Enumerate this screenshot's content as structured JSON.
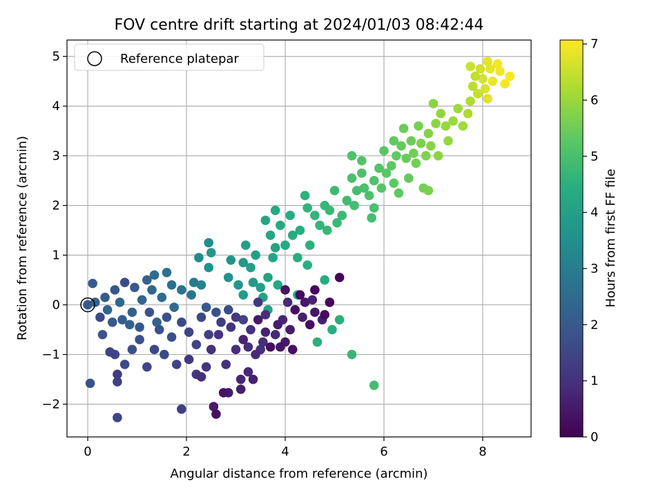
{
  "chart_data": {
    "type": "scatter",
    "title": "FOV centre drift starting at 2024/01/03 08:42:44",
    "xlabel": "Angular distance from reference (arcmin)",
    "ylabel": "Rotation from reference (arcmin)",
    "xlim": [
      -0.42,
      8.98
    ],
    "ylim": [
      -2.66,
      5.33
    ],
    "xticks": [
      0,
      2,
      4,
      6,
      8
    ],
    "yticks": [
      -2,
      -1,
      0,
      1,
      2,
      3,
      4,
      5
    ],
    "xtick_labels": [
      "0",
      "2",
      "4",
      "6",
      "8"
    ],
    "ytick_labels": [
      "−2",
      "−1",
      "0",
      "1",
      "2",
      "3",
      "4",
      "5"
    ],
    "grid": true,
    "legend": {
      "placement": "top-left",
      "label": "Reference platepar"
    },
    "reference_point": {
      "x": 0,
      "y": 0
    },
    "colorbar": {
      "label": "Hours from first FF file",
      "range": [
        0,
        7.07
      ],
      "ticks": [
        0,
        1,
        2,
        3,
        4,
        5,
        6,
        7
      ],
      "tick_labels": [
        "0",
        "1",
        "2",
        "3",
        "4",
        "5",
        "6",
        "7"
      ],
      "colormap": "viridis"
    },
    "series": [
      {
        "points": [
          [
            4.9,
            0.05,
            0.05
          ],
          [
            5.1,
            0.55,
            0.1
          ],
          [
            4.6,
            0.3,
            0.15
          ],
          [
            4.3,
            0.2,
            0.2
          ],
          [
            4.8,
            -0.2,
            0.25
          ],
          [
            4.5,
            -0.4,
            0.3
          ],
          [
            4.2,
            -0.1,
            0.35
          ],
          [
            4.0,
            0.3,
            0.4
          ],
          [
            4.6,
            -0.15,
            0.45
          ],
          [
            4.4,
            0.05,
            0.5
          ],
          [
            4.1,
            -0.5,
            0.55
          ],
          [
            4.75,
            -0.3,
            0.6
          ],
          [
            4.35,
            -0.25,
            0.65
          ],
          [
            4.55,
            0.1,
            0.7
          ],
          [
            3.95,
            -0.3,
            0.75
          ],
          [
            4.05,
            0.05,
            0.8
          ],
          [
            3.8,
            -0.6,
            0.85
          ],
          [
            3.6,
            -0.2,
            0.9
          ],
          [
            3.5,
            -0.9,
            0.95
          ],
          [
            3.3,
            -0.5,
            1.0
          ],
          [
            3.7,
            -0.85,
            0.3
          ],
          [
            3.45,
            -0.3,
            0.5
          ],
          [
            3.15,
            -0.7,
            0.7
          ],
          [
            3.0,
            -0.9,
            0.9
          ],
          [
            2.8,
            -1.2,
            1.0
          ],
          [
            2.9,
            -0.45,
            1.1
          ],
          [
            3.25,
            -1.35,
            0.8
          ],
          [
            3.1,
            -1.7,
            0.6
          ],
          [
            2.75,
            -1.77,
            0.4
          ],
          [
            2.55,
            -2.05,
            0.5
          ],
          [
            2.6,
            -2.2,
            0.3
          ],
          [
            2.85,
            -1.77,
            0.55
          ],
          [
            3.35,
            -1.5,
            0.65
          ],
          [
            3.1,
            -1.5,
            0.75
          ],
          [
            2.4,
            -1.25,
            1.1
          ],
          [
            2.3,
            -1.45,
            1.0
          ],
          [
            2.2,
            -1.4,
            1.2
          ],
          [
            2.05,
            -1.1,
            1.15
          ],
          [
            1.9,
            -2.1,
            1.3
          ],
          [
            2.5,
            -0.9,
            1.0
          ],
          [
            2.65,
            -0.6,
            1.05
          ],
          [
            3.55,
            -0.75,
            0.95
          ],
          [
            3.9,
            -0.85,
            0.45
          ],
          [
            4.15,
            -0.9,
            0.35
          ],
          [
            3.85,
            -0.4,
            0.6
          ],
          [
            4.0,
            -0.75,
            0.5
          ],
          [
            3.6,
            -0.55,
            0.7
          ],
          [
            3.4,
            -1.0,
            0.85
          ],
          [
            3.25,
            -0.85,
            0.9
          ],
          [
            3.0,
            -0.25,
            1.2
          ],
          [
            2.7,
            -0.35,
            1.3
          ],
          [
            2.45,
            -0.6,
            1.35
          ],
          [
            2.2,
            -0.8,
            1.4
          ],
          [
            2.05,
            -0.55,
            1.5
          ],
          [
            2.3,
            -0.25,
            1.55
          ],
          [
            1.9,
            -0.35,
            1.6
          ],
          [
            1.7,
            -0.65,
            1.7
          ],
          [
            1.55,
            -1.0,
            1.6
          ],
          [
            1.35,
            -0.9,
            1.55
          ],
          [
            1.2,
            -1.25,
            1.5
          ],
          [
            1.8,
            -1.2,
            1.45
          ],
          [
            1.6,
            -0.25,
            1.75
          ],
          [
            1.45,
            -0.5,
            1.8
          ],
          [
            1.25,
            -0.15,
            1.85
          ],
          [
            1.05,
            -0.45,
            1.9
          ],
          [
            0.9,
            -0.9,
            1.7
          ],
          [
            0.75,
            -1.2,
            1.6
          ],
          [
            0.55,
            -1.0,
            1.5
          ],
          [
            0.45,
            -0.95,
            1.4
          ],
          [
            0.6,
            -1.55,
            1.35
          ],
          [
            0.05,
            -1.58,
            1.8
          ],
          [
            0.6,
            -2.27,
            1.45
          ],
          [
            0.6,
            -1.4,
            1.25
          ],
          [
            0.3,
            -0.6,
            1.9
          ],
          [
            0.5,
            -0.35,
            2.0
          ],
          [
            0.7,
            -0.3,
            2.1
          ],
          [
            0.9,
            -0.15,
            2.2
          ],
          [
            1.1,
            0.1,
            2.3
          ],
          [
            1.3,
            0.3,
            2.4
          ],
          [
            1.5,
            0.15,
            2.5
          ],
          [
            1.7,
            0.4,
            2.6
          ],
          [
            1.9,
            0.3,
            2.7
          ],
          [
            2.1,
            0.2,
            2.8
          ],
          [
            2.15,
            0.45,
            2.9
          ],
          [
            1.6,
            0.65,
            2.7
          ],
          [
            1.35,
            0.6,
            2.5
          ],
          [
            1.2,
            0.5,
            2.2
          ],
          [
            0.95,
            0.35,
            2.0
          ],
          [
            0.75,
            0.45,
            1.7
          ],
          [
            0.55,
            0.3,
            1.9
          ],
          [
            0.35,
            0.15,
            2.1
          ],
          [
            0.15,
            0.05,
            2.3
          ],
          [
            0.1,
            0.43,
            2.0
          ],
          [
            0.25,
            -0.25,
            1.6
          ],
          [
            0.4,
            -0.1,
            2.3
          ],
          [
            0.65,
            0.05,
            2.4
          ],
          [
            0.85,
            -0.4,
            2.2
          ],
          [
            1.05,
            -0.7,
            1.8
          ],
          [
            1.4,
            -0.35,
            2.3
          ],
          [
            1.75,
            -0.05,
            2.45
          ],
          [
            2.4,
            -0.05,
            2.0
          ],
          [
            2.6,
            -0.15,
            1.8
          ],
          [
            2.85,
            -0.1,
            1.7
          ],
          [
            3.15,
            -0.3,
            1.4
          ],
          [
            3.45,
            0.05,
            1.1
          ],
          [
            2.3,
            0.4,
            3.2
          ],
          [
            2.25,
            0.95,
            3.4
          ],
          [
            2.45,
            0.75,
            3.6
          ],
          [
            2.5,
            1.05,
            3.7
          ],
          [
            2.45,
            1.25,
            3.5
          ],
          [
            2.85,
            0.55,
            3.6
          ],
          [
            2.9,
            0.9,
            3.7
          ],
          [
            3.05,
            0.4,
            3.75
          ],
          [
            3.15,
            0.2,
            3.9
          ],
          [
            3.35,
            0.45,
            3.85
          ],
          [
            3.3,
            0.75,
            3.95
          ],
          [
            3.4,
            1.0,
            4.0
          ],
          [
            3.15,
            0.85,
            3.8
          ],
          [
            3.2,
            1.2,
            3.95
          ],
          [
            3.5,
            0.35,
            4.0
          ],
          [
            3.55,
            0.15,
            4.05
          ],
          [
            3.65,
            0.55,
            4.1
          ],
          [
            3.75,
            0.95,
            4.15
          ],
          [
            3.8,
            1.15,
            4.1
          ],
          [
            3.85,
            0.4,
            4.2
          ],
          [
            3.65,
            -0.1,
            4.05
          ],
          [
            3.7,
            1.4,
            4.2
          ],
          [
            3.6,
            1.7,
            4.15
          ],
          [
            3.8,
            1.9,
            4.25
          ],
          [
            3.9,
            1.6,
            4.3
          ],
          [
            4.0,
            1.2,
            4.3
          ],
          [
            4.15,
            1.4,
            4.35
          ],
          [
            4.25,
            0.95,
            4.4
          ],
          [
            4.3,
            1.5,
            4.45
          ],
          [
            4.1,
            1.8,
            4.4
          ],
          [
            4.5,
            1.2,
            4.5
          ],
          [
            4.45,
            0.8,
            4.45
          ],
          [
            4.4,
            2.2,
            4.55
          ],
          [
            4.45,
            1.95,
            4.6
          ],
          [
            4.6,
            1.8,
            4.6
          ],
          [
            4.7,
            1.6,
            4.65
          ],
          [
            4.8,
            2.0,
            4.7
          ],
          [
            4.9,
            1.9,
            4.75
          ],
          [
            4.85,
            1.5,
            4.7
          ],
          [
            5.0,
            2.3,
            4.8
          ],
          [
            5.05,
            1.65,
            4.75
          ],
          [
            5.15,
            1.8,
            4.8
          ],
          [
            5.25,
            2.1,
            4.85
          ],
          [
            5.4,
            2.0,
            4.9
          ],
          [
            5.45,
            2.3,
            4.95
          ],
          [
            5.35,
            2.55,
            5.0
          ],
          [
            5.6,
            2.35,
            5.0
          ],
          [
            5.55,
            2.65,
            5.05
          ],
          [
            5.7,
            2.2,
            5.05
          ],
          [
            5.8,
            2.5,
            5.1
          ],
          [
            5.9,
            2.75,
            5.15
          ],
          [
            5.75,
            1.75,
            4.95
          ],
          [
            5.8,
            1.95,
            5.0
          ],
          [
            5.35,
            3.0,
            5.1
          ],
          [
            5.55,
            2.9,
            5.15
          ],
          [
            5.95,
            2.35,
            5.2
          ],
          [
            6.05,
            2.65,
            5.25
          ],
          [
            6.15,
            2.8,
            5.3
          ],
          [
            6.2,
            2.45,
            5.3
          ],
          [
            6.25,
            3.0,
            5.35
          ],
          [
            6.3,
            2.25,
            5.3
          ],
          [
            6.35,
            3.2,
            5.4
          ],
          [
            6.45,
            2.95,
            5.45
          ],
          [
            6.5,
            2.55,
            5.4
          ],
          [
            6.55,
            3.3,
            5.5
          ],
          [
            6.6,
            3.05,
            5.55
          ],
          [
            6.7,
            3.6,
            5.6
          ],
          [
            6.65,
            2.85,
            5.55
          ],
          [
            6.75,
            3.25,
            5.65
          ],
          [
            6.85,
            3.0,
            5.7
          ],
          [
            6.9,
            3.45,
            5.75
          ],
          [
            6.95,
            3.2,
            5.8
          ],
          [
            7.05,
            3.65,
            5.85
          ],
          [
            7.0,
            4.05,
            5.8
          ],
          [
            7.1,
            3.0,
            5.85
          ],
          [
            7.15,
            3.85,
            5.9
          ],
          [
            7.25,
            3.6,
            5.95
          ],
          [
            7.3,
            3.3,
            5.95
          ],
          [
            7.4,
            3.7,
            6.0
          ],
          [
            7.5,
            3.95,
            6.05
          ],
          [
            6.8,
            2.35,
            5.6
          ],
          [
            6.9,
            2.3,
            5.65
          ],
          [
            6.2,
            3.3,
            5.35
          ],
          [
            6.4,
            3.55,
            5.45
          ],
          [
            6.0,
            3.1,
            5.25
          ],
          [
            7.6,
            3.6,
            6.1
          ],
          [
            7.7,
            3.85,
            6.2
          ],
          [
            7.75,
            4.1,
            6.25
          ],
          [
            7.8,
            4.4,
            6.35
          ],
          [
            7.85,
            4.6,
            6.45
          ],
          [
            7.9,
            4.25,
            6.5
          ],
          [
            7.95,
            4.75,
            6.6
          ],
          [
            8.0,
            4.55,
            6.65
          ],
          [
            8.05,
            4.35,
            6.7
          ],
          [
            8.1,
            4.9,
            6.8
          ],
          [
            8.15,
            4.75,
            6.85
          ],
          [
            8.2,
            4.5,
            6.9
          ],
          [
            8.3,
            4.85,
            6.95
          ],
          [
            8.45,
            4.45,
            7.0
          ],
          [
            8.55,
            4.6,
            7.05
          ],
          [
            8.1,
            4.15,
            6.75
          ],
          [
            7.75,
            4.8,
            6.55
          ],
          [
            8.35,
            4.7,
            6.95
          ],
          [
            4.65,
            -0.75,
            4.5
          ],
          [
            5.35,
            -1.0,
            4.7
          ],
          [
            5.8,
            -1.62,
            4.9
          ],
          [
            4.95,
            -0.5,
            4.45
          ],
          [
            5.1,
            -0.3,
            4.5
          ],
          [
            4.8,
            0.5,
            4.4
          ],
          [
            4.25,
            0.2,
            4.35
          ]
        ]
      }
    ]
  }
}
